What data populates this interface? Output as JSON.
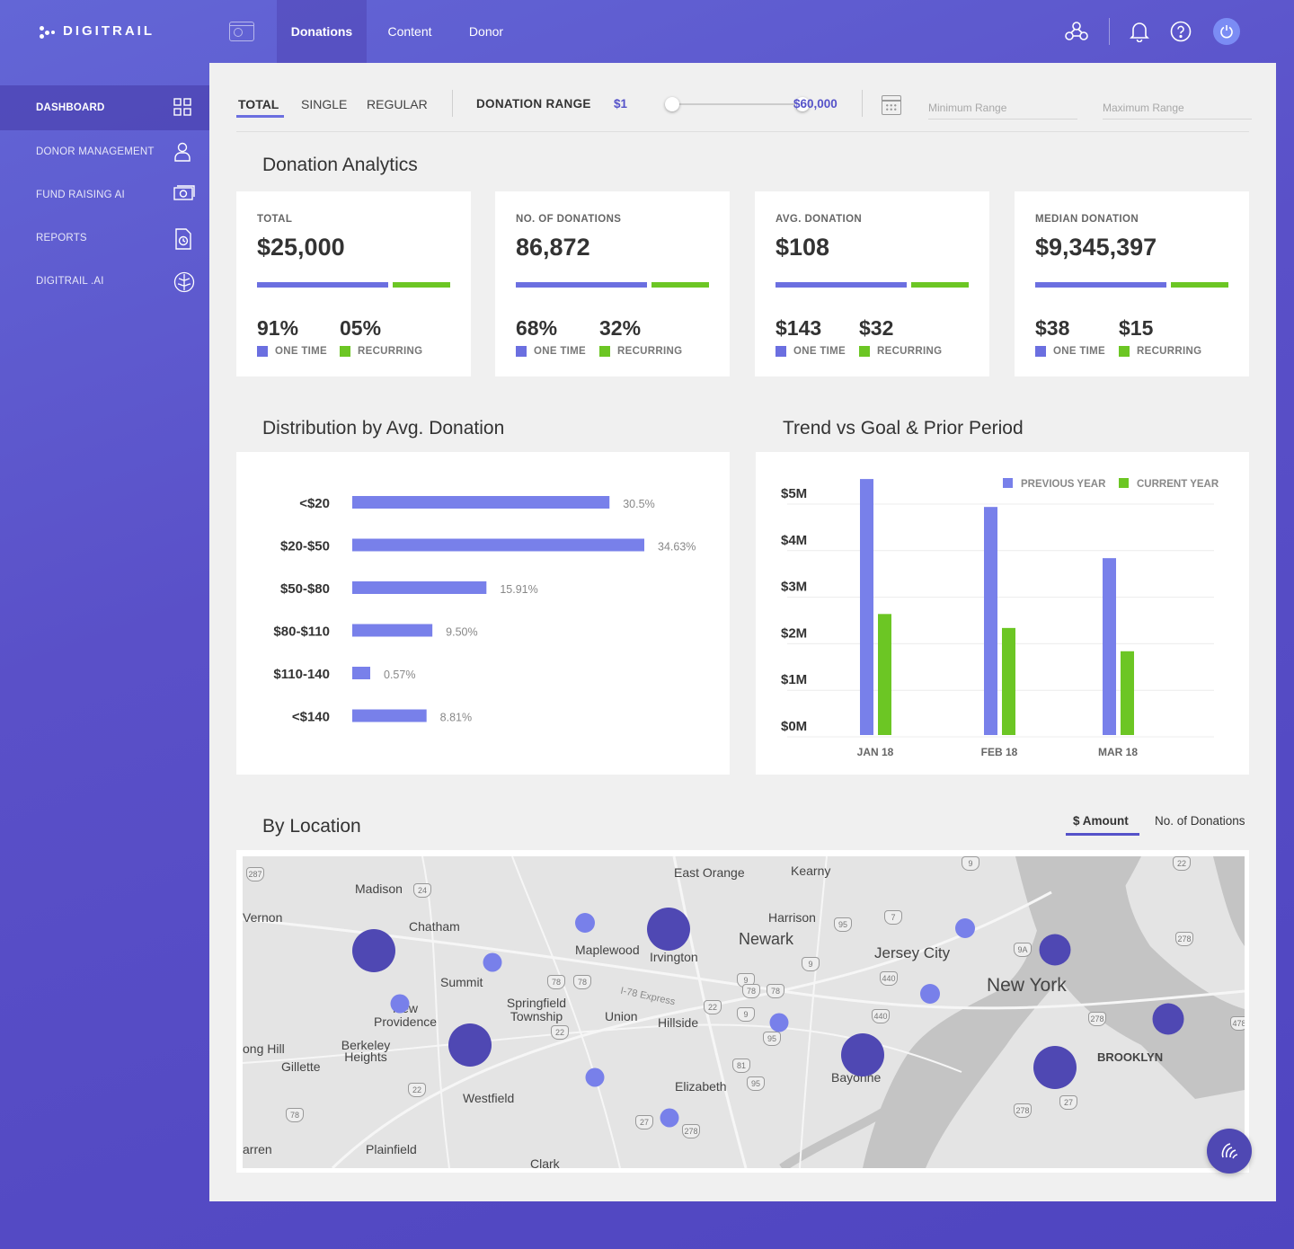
{
  "brand": {
    "name": "DIGITRAIL"
  },
  "nav": {
    "tabs": [
      {
        "label": "Donations",
        "active": true
      },
      {
        "label": "Content",
        "active": false
      },
      {
        "label": "Donor",
        "active": false
      }
    ],
    "icons": [
      "network-icon",
      "bell-icon",
      "help-icon",
      "power-icon"
    ]
  },
  "sidebar": {
    "items": [
      {
        "label": "DASHBOARD",
        "icon": "grid-icon",
        "active": true
      },
      {
        "label": "DONOR MANAGEMENT",
        "icon": "user-icon",
        "active": false
      },
      {
        "label": "FUND RAISING AI",
        "icon": "money-icon",
        "active": false
      },
      {
        "label": "REPORTS",
        "icon": "report-icon",
        "active": false
      },
      {
        "label": "DIGITRAIL .AI",
        "icon": "brain-icon",
        "active": false
      }
    ]
  },
  "filters": {
    "tabs": [
      {
        "label": "TOTAL",
        "active": true
      },
      {
        "label": "SINGLE",
        "active": false
      },
      {
        "label": "REGULAR",
        "active": false
      }
    ],
    "range_label": "DONATION RANGE",
    "range_min": "$1",
    "range_max": "$60,000",
    "min_placeholder": "Minimum Range",
    "max_placeholder": "Maximum Range"
  },
  "analytics": {
    "title": "Donation Analytics",
    "cards": [
      {
        "label": "TOTAL",
        "value": "$25,000",
        "a": "91%",
        "b": "05%",
        "a_label": "ONE TIME",
        "b_label": "RECURRING"
      },
      {
        "label": "NO. OF DONATIONS",
        "value": "86,872",
        "a": "68%",
        "b": "32%",
        "a_label": "ONE TIME",
        "b_label": "RECURRING"
      },
      {
        "label": "AVG. DONATION",
        "value": "$108",
        "a": "$143",
        "b": "$32",
        "a_label": "ONE TIME",
        "b_label": "RECURRING"
      },
      {
        "label": "MEDIAN DONATION",
        "value": "$9,345,397",
        "a": "$38",
        "b": "$15",
        "a_label": "ONE TIME",
        "b_label": "RECURRING"
      }
    ]
  },
  "distribution": {
    "title": "Distribution by Avg. Donation"
  },
  "trend": {
    "title": "Trend vs Goal & Prior Period"
  },
  "location": {
    "title": "By Location",
    "toggle_amount": "$ Amount",
    "toggle_count": "No. of Donations",
    "places": [
      "East Orange",
      "Kearny",
      "Madison",
      "Vernon",
      "Chatham",
      "Harrison",
      "Newark",
      "Maplewood",
      "Irvington",
      "Jersey City",
      "New York",
      "Summit",
      "Springfield Township",
      "New Providence",
      "Union",
      "Hillside",
      "Berkeley Heights",
      "ong Hill",
      "Gillette",
      "Bayonne",
      "BROOKLYN",
      "Westfield",
      "Elizabeth",
      "arren",
      "Plainfield",
      "Clark",
      "I-78 Express"
    ],
    "shields": [
      "287",
      "24",
      "7",
      "9",
      "78",
      "78",
      "9",
      "440",
      "440",
      "9A",
      "278",
      "22",
      "9",
      "78",
      "78",
      "22",
      "22",
      "95",
      "278",
      "478",
      "81",
      "95",
      "78",
      "27",
      "278",
      "27",
      "278",
      "9",
      "95",
      "22"
    ]
  },
  "chart_data": [
    {
      "type": "bar",
      "orientation": "horizontal",
      "title": "Distribution by Avg. Donation",
      "categories": [
        "<$20",
        "$20-$50",
        "$50-$80",
        "$80-$110",
        "$110-140",
        "<$140"
      ],
      "values": [
        30.5,
        34.63,
        15.91,
        9.5,
        0.57,
        8.81
      ],
      "value_labels": [
        "30.5%",
        "34.63%",
        "15.91%",
        "9.50%",
        "0.57%",
        "8.81%"
      ],
      "color": "#7880ea"
    },
    {
      "type": "bar",
      "title": "Trend vs Goal & Prior Period",
      "categories": [
        "JAN 18",
        "FEB 18",
        "MAR 18"
      ],
      "series": [
        {
          "name": "PREVIOUS YEAR",
          "values": [
            5.5,
            4.9,
            3.8
          ],
          "color": "#7880ea"
        },
        {
          "name": "CURRENT YEAR",
          "values": [
            2.6,
            2.3,
            1.8
          ],
          "color": "#6cc624"
        }
      ],
      "y_ticks": [
        "$0M",
        "$1M",
        "$2M",
        "$3M",
        "$4M",
        "$5M"
      ],
      "ylim": [
        0,
        5.5
      ],
      "legend": "top-right",
      "grid": true
    }
  ]
}
